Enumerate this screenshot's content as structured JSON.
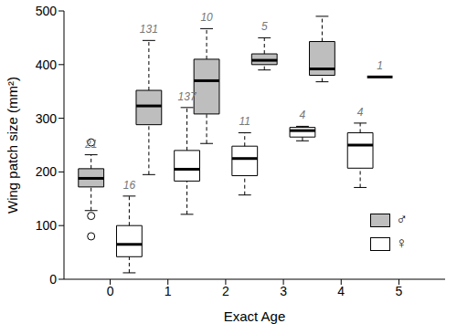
{
  "chart_data": {
    "type": "boxplot",
    "x_label": "Exact Age",
    "y_label": "Wing patch size (mm²)",
    "xlim": [
      -0.8,
      5.8
    ],
    "ylim": [
      0,
      500
    ],
    "xticks": [
      0,
      1,
      2,
      3,
      4,
      5
    ],
    "yticks": [
      0,
      100,
      200,
      300,
      400,
      500
    ],
    "legend": "lower right",
    "series": [
      {
        "name": "♂",
        "color": "#bebebe",
        "values": [
          {
            "x": 0,
            "whisker_low": 128,
            "q1": 172,
            "median": 188,
            "q3": 206,
            "whisker_high": 232,
            "outliers": [
              255,
              118,
              80
            ],
            "n": 21
          },
          {
            "x": 1,
            "whisker_low": 195,
            "q1": 288,
            "median": 323,
            "q3": 352,
            "whisker_high": 445,
            "outliers": [],
            "n": 131
          },
          {
            "x": 2,
            "whisker_low": 253,
            "q1": 308,
            "median": 370,
            "q3": 410,
            "whisker_high": 467,
            "outliers": [],
            "n": 10
          },
          {
            "x": 3,
            "whisker_low": 390,
            "q1": 400,
            "median": 408,
            "q3": 420,
            "whisker_high": 450,
            "outliers": [],
            "n": 5
          },
          {
            "x": 4,
            "whisker_low": 368,
            "q1": 380,
            "median": 392,
            "q3": 443,
            "whisker_high": 490,
            "outliers": [],
            "n": 4
          },
          {
            "x": 5,
            "whisker_low": 377,
            "q1": 377,
            "median": 377,
            "q3": 377,
            "whisker_high": 377,
            "outliers": [],
            "n": 1
          }
        ]
      },
      {
        "name": "♀",
        "color": "#ffffff",
        "values": [
          {
            "x": 0,
            "whisker_low": 12,
            "q1": 42,
            "median": 65,
            "q3": 100,
            "whisker_high": 155,
            "outliers": [],
            "n": 16
          },
          {
            "x": 1,
            "whisker_low": 121,
            "q1": 183,
            "median": 205,
            "q3": 240,
            "whisker_high": 320,
            "outliers": [],
            "n": 137
          },
          {
            "x": 2,
            "whisker_low": 157,
            "q1": 193,
            "median": 225,
            "q3": 248,
            "whisker_high": 273,
            "outliers": [],
            "n": 11
          },
          {
            "x": 3,
            "whisker_low": 258,
            "q1": 265,
            "median": 277,
            "q3": 283,
            "whisker_high": 285,
            "outliers": [],
            "n": 4
          },
          {
            "x": 4,
            "whisker_low": 171,
            "q1": 207,
            "median": 250,
            "q3": 273,
            "whisker_high": 291,
            "outliers": [],
            "n": 4
          }
        ]
      }
    ]
  }
}
